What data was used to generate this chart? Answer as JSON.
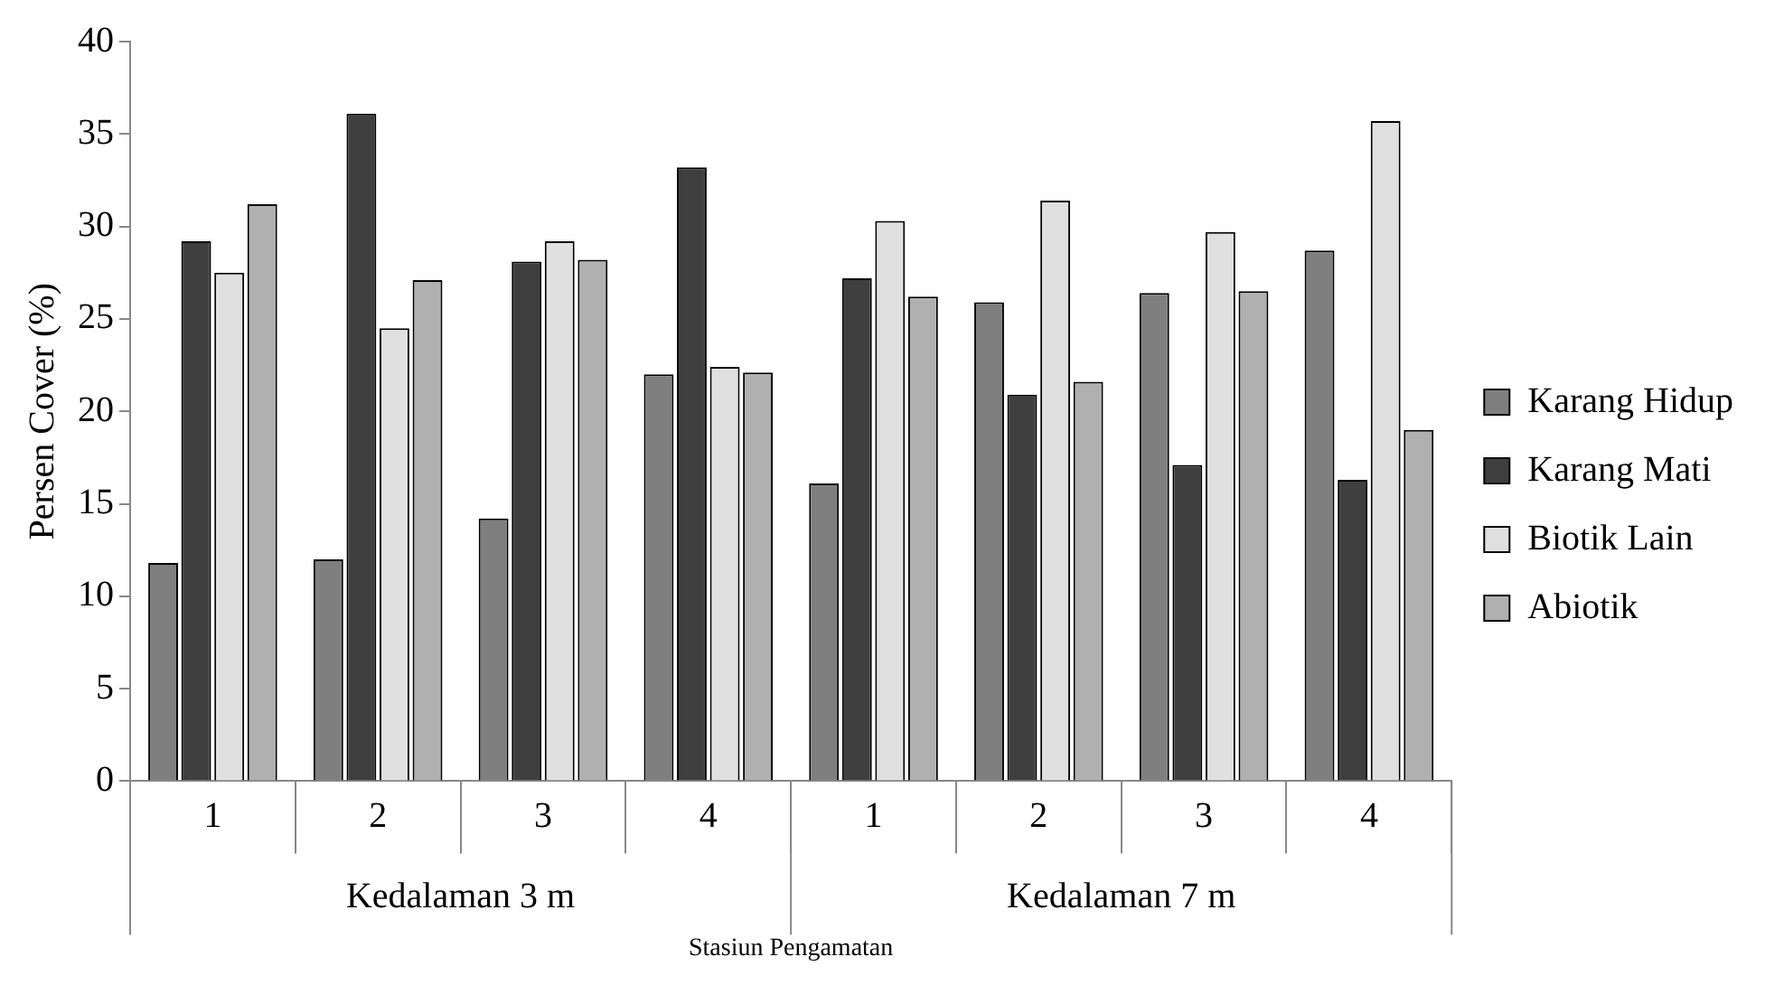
{
  "chart_data": {
    "type": "bar",
    "ylabel": "Persen Cover (%)",
    "xlabel": "Stasiun Pengamatan",
    "categories": [
      "1",
      "2",
      "3",
      "4",
      "1",
      "2",
      "3",
      "4"
    ],
    "annotations": [
      "Kedalaman 3 m",
      "Kedalaman 7 m"
    ],
    "series": [
      {
        "name": "Karang Hidup",
        "color": "#7f7f7f",
        "values": [
          11.8,
          12.0,
          14.2,
          22.0,
          16.1,
          25.9,
          26.4,
          28.7
        ]
      },
      {
        "name": "Karang Mati",
        "color": "#3f3f3f",
        "values": [
          29.2,
          36.1,
          28.1,
          33.2,
          27.2,
          20.9,
          17.1,
          16.3
        ]
      },
      {
        "name": "Biotik Lain",
        "color": "#e0e0e0",
        "values": [
          27.5,
          24.5,
          29.2,
          22.4,
          30.3,
          31.4,
          29.7,
          35.7
        ]
      },
      {
        "name": "Abiotik",
        "color": "#b0b0b0",
        "values": [
          31.2,
          27.1,
          28.2,
          22.1,
          26.2,
          21.6,
          26.5,
          19.0
        ]
      }
    ],
    "ylim": [
      0,
      40
    ],
    "yticks": [
      0,
      5,
      10,
      15,
      20,
      25,
      30,
      35,
      40
    ],
    "grid": false,
    "legend": "right"
  }
}
